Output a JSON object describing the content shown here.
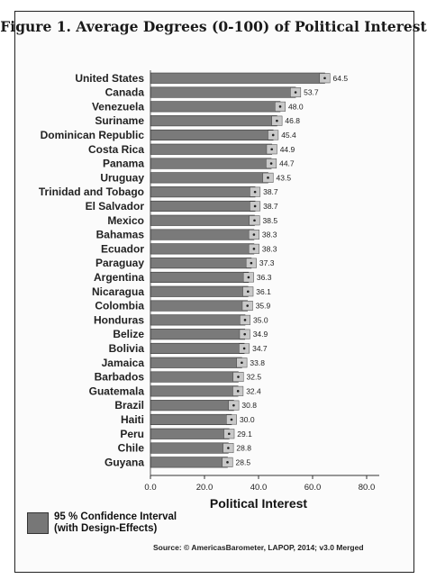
{
  "chart_data": {
    "type": "bar",
    "orientation": "horizontal",
    "title": "Figure 1. Average Degrees (0-100) of Political Interest",
    "xlabel": "Political Interest",
    "ylabel": "",
    "xlim": [
      0,
      80
    ],
    "xticks": [
      "0.0",
      "20.0",
      "40.0",
      "60.0",
      "80.0"
    ],
    "grid": false,
    "categories": [
      "United States",
      "Canada",
      "Venezuela",
      "Suriname",
      "Dominican Republic",
      "Costa Rica",
      "Panama",
      "Uruguay",
      "Trinidad and Tobago",
      "El Salvador",
      "Mexico",
      "Bahamas",
      "Ecuador",
      "Paraguay",
      "Argentina",
      "Nicaragua",
      "Colombia",
      "Honduras",
      "Belize",
      "Bolivia",
      "Jamaica",
      "Barbados",
      "Guatemala",
      "Brazil",
      "Haiti",
      "Peru",
      "Chile",
      "Guyana"
    ],
    "values": [
      64.5,
      53.7,
      48.0,
      46.8,
      45.4,
      44.9,
      44.7,
      43.5,
      38.7,
      38.7,
      38.5,
      38.3,
      38.3,
      37.3,
      36.3,
      36.1,
      35.9,
      35.0,
      34.9,
      34.7,
      33.8,
      32.5,
      32.4,
      30.8,
      30.0,
      29.1,
      28.8,
      28.5
    ],
    "value_labels": [
      "64.5",
      "53.7",
      "48.0",
      "46.8",
      "45.4",
      "44.9",
      "44.7",
      "43.5",
      "38.7",
      "38.7",
      "38.5",
      "38.3",
      "38.3",
      "37.3",
      "36.3",
      "36.1",
      "35.9",
      "35.0",
      "34.9",
      "34.7",
      "33.8",
      "32.5",
      "32.4",
      "30.8",
      "30.0",
      "29.1",
      "28.8",
      "28.5"
    ],
    "error_bars": "95 % Confidence Interval (with Design-Effects)",
    "legend": {
      "placement": "bottom-left",
      "label_line1": "95 % Confidence Interval",
      "label_line2": "(with Design-Effects)"
    },
    "source": "Source: © AmericasBarometer, LAPOP, 2014; v3.0 Merged"
  },
  "colors": {
    "bar": "#7a7a7a",
    "ci_band": "#c9c9c9",
    "text": "#1a1a1a"
  }
}
